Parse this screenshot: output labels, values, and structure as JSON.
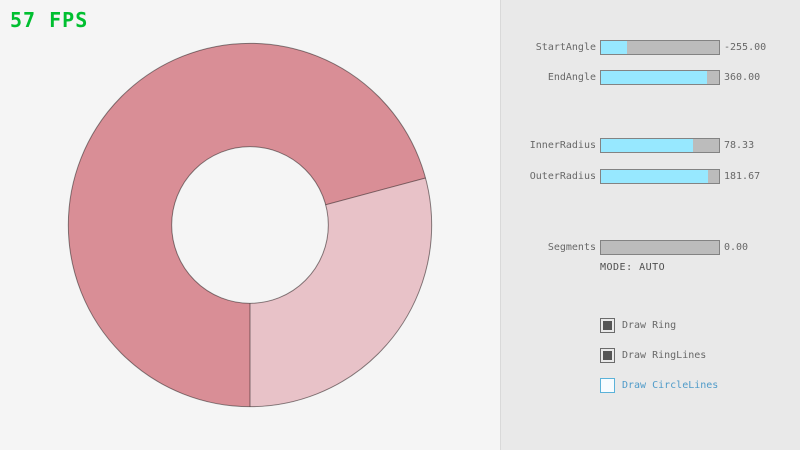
{
  "fps": {
    "text": "57 FPS"
  },
  "ring": {
    "color_double_pass": "#d98e96",
    "color_single_pass": "#e8c2c8",
    "line_color": "rgba(0,0,0,0.45)"
  },
  "panel": {
    "sliders": [
      {
        "id": "start-angle",
        "label": "StartAngle",
        "value": "-255.00",
        "fill_pct": 21.7
      },
      {
        "id": "end-angle",
        "label": "EndAngle",
        "value": "360.00",
        "fill_pct": 90.0
      },
      {
        "id": "inner-radius",
        "label": "InnerRadius",
        "value": "78.33",
        "fill_pct": 78.3
      },
      {
        "id": "outer-radius",
        "label": "OuterRadius",
        "value": "181.67",
        "fill_pct": 90.8
      },
      {
        "id": "segments",
        "label": "Segments",
        "value": "0.00",
        "fill_pct": 0
      }
    ],
    "mode_text": "MODE: AUTO",
    "checkboxes": [
      {
        "id": "draw-ring",
        "label": "Draw Ring",
        "checked": true
      },
      {
        "id": "draw-ringlines",
        "label": "Draw RingLines",
        "checked": true
      },
      {
        "id": "draw-circlelines",
        "label": "Draw CircleLines",
        "checked": false
      }
    ]
  },
  "colors": {
    "bg_left": "#f5f5f5",
    "bg_panel": "#e9e9e9",
    "divider": "#d9d9d9",
    "fps_green": "#00bf30",
    "track_bg": "#bcbcbc",
    "track_border": "#838383",
    "slider_fill": "#97e8ff",
    "gui_text": "#686868",
    "mode_text": "#4f4f4f",
    "checkbox_fill": "#555555",
    "checkbox_border": "#6b6b6b",
    "focus_border": "#5bb2d9",
    "focus_text": "#4f9bc9"
  }
}
